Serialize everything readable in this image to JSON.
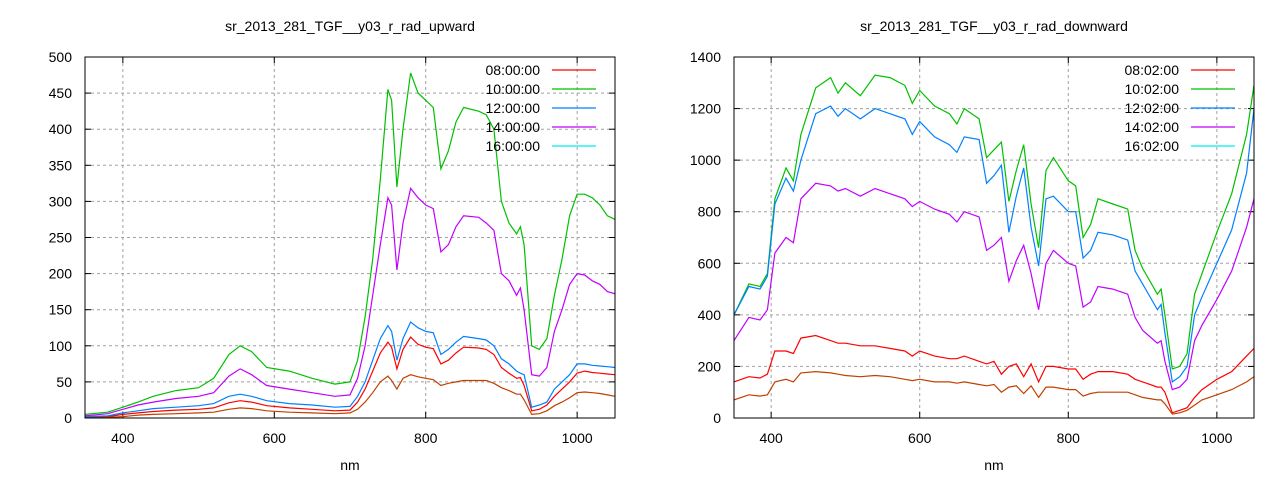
{
  "chart_data": [
    {
      "type": "line",
      "title": "sr_2013_281_TGF__y03_r_rad_upward",
      "xlabel": "nm",
      "ylabel": "",
      "xlim": [
        350,
        1050
      ],
      "ylim": [
        0,
        500
      ],
      "xticks": [
        400,
        600,
        800,
        1000
      ],
      "yticks": [
        0,
        50,
        100,
        150,
        200,
        250,
        300,
        350,
        400,
        450,
        500
      ],
      "grid": true,
      "legend_position": "top-right",
      "x": [
        350,
        380,
        400,
        420,
        440,
        470,
        500,
        520,
        540,
        555,
        570,
        590,
        620,
        650,
        680,
        700,
        710,
        720,
        730,
        740,
        750,
        755,
        762,
        770,
        780,
        790,
        800,
        810,
        820,
        830,
        840,
        850,
        870,
        880,
        890,
        900,
        910,
        920,
        925,
        930,
        940,
        950,
        960,
        970,
        980,
        990,
        1000,
        1010,
        1020,
        1030,
        1040,
        1050
      ],
      "series": [
        {
          "name": "08:00:00",
          "color": "#ff0000",
          "legend_color": "#ff0000",
          "values": [
            1,
            2,
            5,
            7,
            9,
            11,
            12,
            14,
            21,
            24,
            22,
            17,
            14,
            12,
            10,
            11,
            22,
            40,
            65,
            90,
            105,
            98,
            68,
            95,
            112,
            102,
            98,
            96,
            75,
            80,
            90,
            98,
            97,
            95,
            88,
            70,
            62,
            55,
            56,
            45,
            10,
            12,
            18,
            30,
            40,
            50,
            62,
            65,
            63,
            62,
            61,
            60
          ]
        },
        {
          "name": "10:00:00",
          "color": "#00c000",
          "legend_color": "#00c000",
          "values": [
            5,
            8,
            15,
            22,
            30,
            38,
            42,
            55,
            88,
            100,
            92,
            70,
            65,
            55,
            47,
            50,
            80,
            140,
            220,
            330,
            455,
            440,
            320,
            400,
            478,
            450,
            440,
            430,
            345,
            370,
            410,
            430,
            425,
            420,
            400,
            300,
            270,
            255,
            265,
            240,
            100,
            95,
            110,
            170,
            220,
            280,
            310,
            310,
            305,
            295,
            280,
            275
          ]
        },
        {
          "name": "12:00:00",
          "color": "#0080ff",
          "legend_color": "#0080ff",
          "values": [
            2,
            3,
            7,
            10,
            13,
            15,
            17,
            20,
            30,
            33,
            30,
            24,
            20,
            18,
            15,
            16,
            30,
            50,
            80,
            110,
            128,
            120,
            80,
            110,
            133,
            125,
            120,
            118,
            88,
            95,
            105,
            113,
            110,
            108,
            100,
            82,
            75,
            65,
            62,
            60,
            15,
            18,
            22,
            40,
            50,
            60,
            75,
            75,
            73,
            72,
            71,
            70
          ]
        },
        {
          "name": "14:00:00",
          "color": "#c000ff",
          "legend_color": "#c000ff",
          "values": [
            3,
            6,
            12,
            18,
            22,
            27,
            30,
            35,
            58,
            68,
            60,
            45,
            40,
            35,
            30,
            32,
            55,
            100,
            170,
            240,
            305,
            295,
            205,
            270,
            318,
            305,
            295,
            290,
            230,
            240,
            265,
            280,
            278,
            270,
            260,
            200,
            190,
            170,
            180,
            150,
            60,
            58,
            70,
            120,
            150,
            185,
            200,
            198,
            190,
            185,
            175,
            172
          ]
        },
        {
          "name": "16:00:00",
          "color": "#c04000",
          "legend_color": "#00eeee",
          "values": [
            0,
            1,
            2,
            4,
            5,
            6,
            7,
            8,
            12,
            14,
            13,
            10,
            8,
            7,
            6,
            7,
            12,
            22,
            35,
            50,
            58,
            52,
            40,
            55,
            60,
            57,
            55,
            53,
            45,
            48,
            50,
            52,
            52,
            52,
            48,
            42,
            38,
            33,
            33,
            25,
            5,
            6,
            10,
            17,
            22,
            28,
            35,
            36,
            35,
            34,
            32,
            30
          ]
        }
      ]
    },
    {
      "type": "line",
      "title": "sr_2013_281_TGF__y03_r_rad_downward",
      "xlabel": "nm",
      "ylabel": "",
      "xlim": [
        350,
        1050
      ],
      "ylim": [
        0,
        1400
      ],
      "xticks": [
        400,
        600,
        800,
        1000
      ],
      "yticks": [
        0,
        200,
        400,
        600,
        800,
        1000,
        1200,
        1400
      ],
      "grid": true,
      "legend_position": "top-right",
      "x": [
        350,
        370,
        385,
        395,
        405,
        420,
        430,
        440,
        460,
        480,
        490,
        500,
        520,
        540,
        560,
        580,
        590,
        600,
        620,
        640,
        650,
        660,
        680,
        690,
        700,
        710,
        720,
        730,
        740,
        750,
        760,
        770,
        780,
        800,
        810,
        820,
        830,
        840,
        860,
        880,
        890,
        900,
        920,
        925,
        930,
        940,
        950,
        960,
        970,
        980,
        1000,
        1020,
        1040,
        1050
      ],
      "series": [
        {
          "name": "08:02:00",
          "color": "#ff0000",
          "legend_color": "#ff0000",
          "values": [
            140,
            160,
            155,
            170,
            260,
            260,
            250,
            310,
            320,
            300,
            290,
            290,
            280,
            280,
            270,
            260,
            240,
            260,
            240,
            230,
            230,
            240,
            220,
            210,
            220,
            170,
            200,
            210,
            160,
            210,
            140,
            200,
            200,
            190,
            190,
            150,
            170,
            180,
            180,
            170,
            150,
            140,
            120,
            120,
            100,
            20,
            30,
            40,
            80,
            110,
            150,
            180,
            240,
            270
          ]
        },
        {
          "name": "10:02:00",
          "color": "#00c000",
          "legend_color": "#00c000",
          "values": [
            400,
            520,
            510,
            560,
            850,
            970,
            920,
            1100,
            1280,
            1320,
            1260,
            1300,
            1250,
            1330,
            1320,
            1290,
            1220,
            1270,
            1210,
            1180,
            1140,
            1200,
            1160,
            1010,
            1040,
            1070,
            840,
            960,
            1060,
            830,
            660,
            960,
            1010,
            920,
            900,
            700,
            750,
            850,
            830,
            810,
            650,
            580,
            480,
            500,
            400,
            190,
            200,
            250,
            480,
            560,
            720,
            870,
            1100,
            1290
          ]
        },
        {
          "name": "12:02:00",
          "color": "#0080ff",
          "legend_color": "#0080ff",
          "values": [
            400,
            510,
            500,
            550,
            830,
            930,
            880,
            1000,
            1180,
            1210,
            1170,
            1200,
            1160,
            1200,
            1180,
            1160,
            1100,
            1150,
            1090,
            1060,
            1030,
            1090,
            1080,
            910,
            940,
            980,
            720,
            860,
            970,
            740,
            590,
            850,
            860,
            800,
            800,
            620,
            650,
            720,
            710,
            690,
            570,
            520,
            420,
            440,
            330,
            140,
            160,
            200,
            400,
            470,
            600,
            730,
            950,
            1200
          ]
        },
        {
          "name": "14:02:00",
          "color": "#c000ff",
          "legend_color": "#c000ff",
          "values": [
            300,
            390,
            380,
            420,
            640,
            700,
            680,
            850,
            910,
            900,
            880,
            890,
            860,
            890,
            870,
            850,
            820,
            840,
            810,
            790,
            760,
            800,
            780,
            650,
            670,
            700,
            530,
            610,
            670,
            560,
            420,
            600,
            650,
            600,
            590,
            430,
            450,
            510,
            500,
            480,
            390,
            340,
            290,
            300,
            220,
            110,
            120,
            150,
            300,
            360,
            460,
            570,
            740,
            850
          ]
        },
        {
          "name": "16:02:00",
          "color": "#c04000",
          "legend_color": "#00eeee",
          "values": [
            70,
            90,
            85,
            90,
            140,
            150,
            140,
            175,
            180,
            175,
            170,
            165,
            160,
            165,
            160,
            150,
            145,
            150,
            140,
            140,
            135,
            140,
            130,
            125,
            130,
            100,
            120,
            125,
            95,
            125,
            80,
            120,
            120,
            110,
            110,
            85,
            95,
            100,
            100,
            100,
            90,
            80,
            70,
            70,
            55,
            15,
            20,
            30,
            50,
            70,
            90,
            110,
            140,
            160
          ]
        }
      ]
    }
  ]
}
